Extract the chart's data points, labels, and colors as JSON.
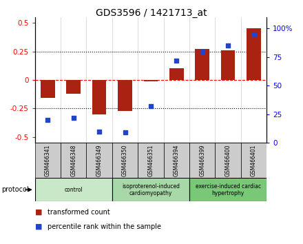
{
  "title": "GDS3596 / 1421713_at",
  "samples": [
    "GSM466341",
    "GSM466348",
    "GSM466349",
    "GSM466350",
    "GSM466351",
    "GSM466394",
    "GSM466399",
    "GSM466400",
    "GSM466401"
  ],
  "bar_values": [
    -0.16,
    -0.12,
    -0.3,
    -0.27,
    -0.01,
    0.1,
    0.27,
    0.26,
    0.45
  ],
  "dot_values": [
    20,
    22,
    10,
    9,
    32,
    72,
    80,
    85,
    95
  ],
  "bar_color": "#AA2211",
  "dot_color": "#2244CC",
  "ylim_left": [
    -0.55,
    0.55
  ],
  "ylim_right": [
    0,
    110
  ],
  "yticks_left": [
    -0.5,
    -0.25,
    0,
    0.25,
    0.5
  ],
  "yticks_right": [
    0,
    25,
    50,
    75,
    100
  ],
  "ytick_labels_left": [
    "-0.5",
    "-0.25",
    "0",
    "0.25",
    "0.5"
  ],
  "ytick_labels_right": [
    "0",
    "25",
    "50",
    "75",
    "100%"
  ],
  "hlines_dotted": [
    -0.25,
    0.25
  ],
  "hline_dashed": 0,
  "groups": [
    {
      "label": "control",
      "start": 0,
      "end": 3,
      "color": "#c8e8c8"
    },
    {
      "label": "isoproterenol-induced\ncardiomyopathy",
      "start": 3,
      "end": 6,
      "color": "#a8d8a8"
    },
    {
      "label": "exercise-induced cardiac\nhypertrophy",
      "start": 6,
      "end": 9,
      "color": "#78c878"
    }
  ],
  "protocol_label": "protocol",
  "legend_items": [
    {
      "label": "transformed count",
      "color": "#AA2211"
    },
    {
      "label": "percentile rank within the sample",
      "color": "#2244CC"
    }
  ],
  "bar_width": 0.55,
  "sample_box_color": "#cccccc",
  "fig_bg": "#ffffff"
}
